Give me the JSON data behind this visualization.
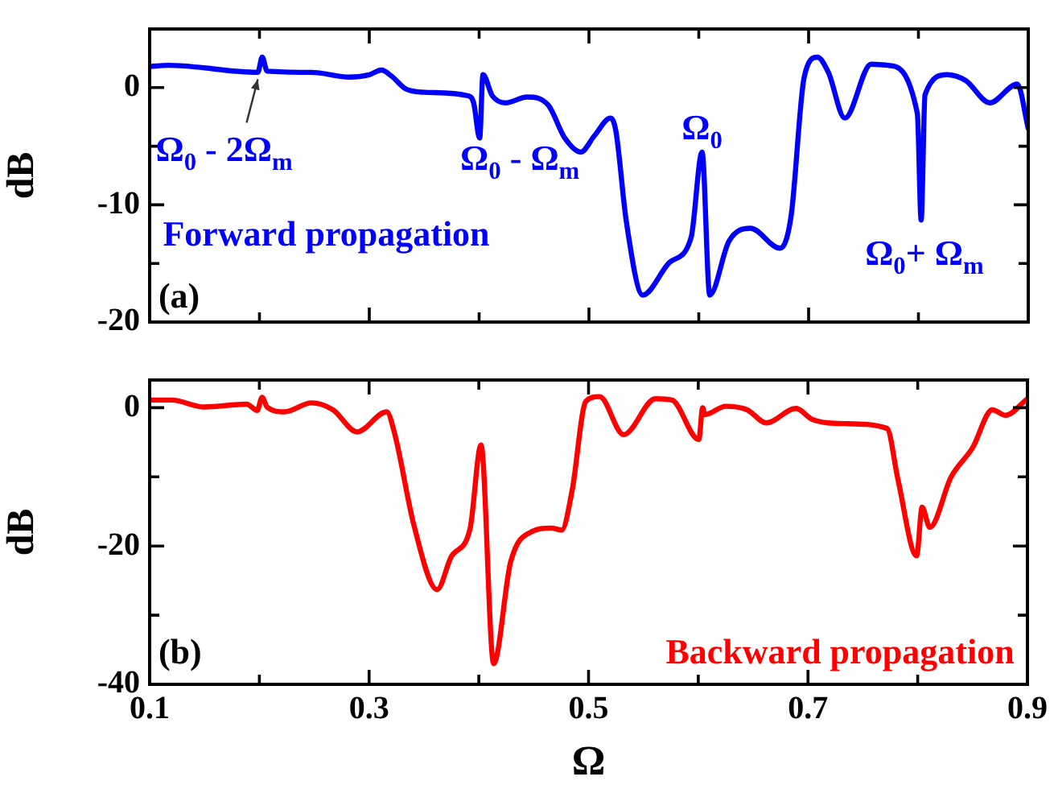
{
  "chart_data": [
    {
      "type": "line",
      "ylabel": "dB",
      "xlim": [
        0.1,
        0.9
      ],
      "ylim": [
        -20,
        5
      ],
      "xticks": [
        0.1,
        {
          "value": 0.2,
          "label": null
        },
        0.3,
        {
          "value": 0.4,
          "label": null
        },
        0.5,
        {
          "value": 0.6,
          "label": null
        },
        0.7,
        {
          "value": 0.8,
          "label": null
        },
        0.9
      ],
      "yticks": [
        -20,
        {
          "value": -15,
          "label": null
        },
        -10,
        {
          "value": -5,
          "label": null
        },
        0
      ],
      "tick_labels": "y",
      "grid": false,
      "legend": false,
      "marker": "none",
      "line_style": "solid",
      "series": [
        {
          "color": "#0000ff",
          "x": [
            0.1,
            0.117,
            0.1985,
            0.2025,
            0.207,
            0.2475,
            0.282,
            0.3,
            0.311,
            0.32,
            0.333,
            0.35,
            0.39,
            0.395,
            0.4005,
            0.4035,
            0.412,
            0.424,
            0.4436,
            0.463,
            0.478,
            0.4926,
            0.505,
            0.5196,
            0.5245,
            0.534,
            0.549,
            0.5735,
            0.593,
            0.603,
            0.61,
            0.6275,
            0.647,
            0.674,
            0.684,
            0.696,
            0.708,
            0.718,
            0.733,
            0.757,
            0.772,
            0.799,
            0.8025,
            0.806,
            0.826,
            0.843,
            0.865,
            0.89,
            0.9
          ],
          "values": [
            1.8,
            1.9,
            1.3,
            2.6,
            1.4,
            1.3,
            0.9,
            1.1,
            1.5,
            1.0,
            -0.1,
            -0.4,
            -0.7,
            -1.3,
            -4.3,
            1.1,
            -0.7,
            -1.3,
            -0.8,
            -1.5,
            -4.3,
            -5.5,
            -4.1,
            -2.6,
            -3.7,
            -11.4,
            -17.7,
            -14.9,
            -12.8,
            -5.5,
            -17.7,
            -13.1,
            -12.0,
            -13.7,
            -11.0,
            0.9,
            2.6,
            1.3,
            -2.6,
            2.0,
            1.9,
            -2.2,
            -11.3,
            -0.6,
            1.1,
            0.6,
            -1.3,
            0.3,
            -3.5
          ]
        }
      ],
      "annotations": [
        {
          "text": "Ω$_{0}$ - 2Ω$_{m}$",
          "x": 0.2,
          "y": 1.4
        },
        {
          "text": "Ω$_{0}$ - Ω$_{m}$",
          "x": 0.4005,
          "y": -4.3
        },
        {
          "text": "Ω$_{0}$",
          "x": 0.603,
          "y": -5.5
        },
        {
          "text": "Ω$_{0}$+ Ω$_{m}$",
          "x": 0.8025,
          "y": -11.3
        },
        "Forward propagation",
        "(a)"
      ]
    },
    {
      "type": "line",
      "xlabel": "Ω",
      "ylabel": "dB",
      "xlim": [
        0.1,
        0.9
      ],
      "ylim": [
        -40,
        4
      ],
      "xticks": [
        0.1,
        {
          "value": 0.2,
          "label": null
        },
        0.3,
        {
          "value": 0.4,
          "label": null
        },
        0.5,
        {
          "value": 0.6,
          "label": null
        },
        0.7,
        {
          "value": 0.8,
          "label": null
        },
        0.9
      ],
      "yticks": [
        -40,
        {
          "value": -30,
          "label": null
        },
        -20,
        {
          "value": -10,
          "label": null
        },
        0
      ],
      "grid": false,
      "legend": false,
      "marker": "none",
      "line_style": "solid",
      "series": [
        {
          "color": "#ff0000",
          "x": [
            0.1,
            0.12,
            0.1495,
            0.1885,
            0.198,
            0.2025,
            0.207,
            0.223,
            0.2475,
            0.267,
            0.289,
            0.316,
            0.3235,
            0.341,
            0.362,
            0.375,
            0.392,
            0.402,
            0.4135,
            0.429,
            0.4485,
            0.466,
            0.4755,
            0.485,
            0.4975,
            0.51,
            0.532,
            0.561,
            0.576,
            0.6005,
            0.604,
            0.606,
            0.625,
            0.6445,
            0.662,
            0.689,
            0.704,
            0.733,
            0.772,
            0.782,
            0.799,
            0.804,
            0.811,
            0.8305,
            0.85,
            0.868,
            0.88,
            0.9
          ],
          "values": [
            1.1,
            1.1,
            0.1,
            0.5,
            -0.4,
            1.5,
            0.1,
            -0.6,
            0.7,
            -0.3,
            -3.5,
            -0.6,
            -3.9,
            -17.1,
            -26.3,
            -21.5,
            -17.5,
            -5.4,
            -37.0,
            -22.3,
            -17.9,
            -17.4,
            -17.7,
            -12.0,
            0.9,
            1.6,
            -3.9,
            1.3,
            1.1,
            -4.6,
            0,
            -1,
            0.2,
            -0.3,
            -2.2,
            -0.1,
            -1.7,
            -2.3,
            -3.0,
            -10.4,
            -21.4,
            -14.4,
            -17.3,
            -10,
            -5.8,
            -0.3,
            -1.1,
            1.3
          ]
        }
      ],
      "annotations": [
        "Backward propagation",
        "(b)"
      ]
    }
  ]
}
